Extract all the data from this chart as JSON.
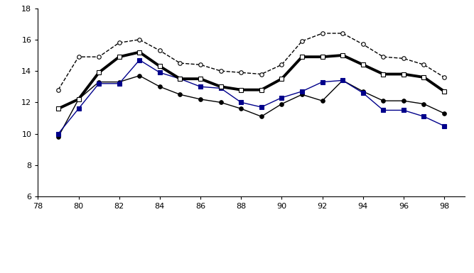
{
  "years": [
    79,
    80,
    81,
    82,
    83,
    84,
    85,
    86,
    87,
    88,
    89,
    90,
    91,
    92,
    93,
    94,
    95,
    96,
    97,
    98
  ],
  "cash_plus_social": [
    12.8,
    14.9,
    14.9,
    15.8,
    16.0,
    15.3,
    14.5,
    14.4,
    14.0,
    13.9,
    13.8,
    14.4,
    15.9,
    16.4,
    16.4,
    15.7,
    14.9,
    14.8,
    14.4,
    13.6
  ],
  "plus_means_tested": [
    11.6,
    12.2,
    13.9,
    14.9,
    15.2,
    14.3,
    13.5,
    13.5,
    13.0,
    12.8,
    12.8,
    13.5,
    14.9,
    14.9,
    15.0,
    14.4,
    13.8,
    13.8,
    13.6,
    12.7
  ],
  "plus_food_housing": [
    9.8,
    12.2,
    13.3,
    13.3,
    13.7,
    13.0,
    12.5,
    12.2,
    12.0,
    11.6,
    11.1,
    11.9,
    12.5,
    12.1,
    13.4,
    12.7,
    12.1,
    12.1,
    11.9,
    11.3
  ],
  "plus_eitc_taxes": [
    10.0,
    11.6,
    13.2,
    13.2,
    14.7,
    13.9,
    13.5,
    13.0,
    12.9,
    12.0,
    11.7,
    12.3,
    12.7,
    13.3,
    13.4,
    12.6,
    11.5,
    11.5,
    11.1,
    10.5
  ],
  "ylim": [
    6,
    18
  ],
  "xlim": [
    78,
    99
  ],
  "xticks": [
    78,
    80,
    82,
    84,
    86,
    88,
    90,
    92,
    94,
    96,
    98
  ],
  "xtick_labels": [
    "78",
    "80",
    "82",
    "84",
    "86",
    "88",
    "90",
    "92",
    "94",
    "96",
    "98"
  ],
  "yticks": [
    6,
    8,
    10,
    12,
    14,
    16,
    18
  ],
  "color_social": "#000000",
  "color_means": "#000000",
  "color_food": "#000000",
  "color_eitc": "#00008B",
  "lw_thin": 1.0,
  "lw_thick": 2.8,
  "markersize": 4
}
